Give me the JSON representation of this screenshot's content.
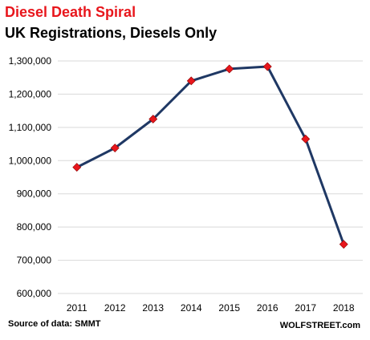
{
  "header": {
    "title": "Diesel Death Spiral",
    "subtitle": "UK Registrations,  Diesels Only"
  },
  "footer": {
    "source": "Source of data: SMMT",
    "credit": "WOLFSTREET.com"
  },
  "colors": {
    "title": "#e8161c",
    "line": "#1f3864",
    "marker": "#e8161c",
    "grid": "#d9d9d9"
  },
  "chart_data": {
    "type": "line",
    "categories": [
      "2011",
      "2012",
      "2013",
      "2014",
      "2015",
      "2016",
      "2017",
      "2018"
    ],
    "series": [
      {
        "values": [
          980000,
          1038000,
          1125000,
          1240000,
          1276000,
          1283000,
          1065000,
          748000
        ]
      }
    ],
    "ylim": [
      600000,
      1300000
    ],
    "yticks": [
      "600,000",
      "700,000",
      "800,000",
      "900,000",
      "1,000,000",
      "1,100,000",
      "1,200,000",
      "1,300,000"
    ],
    "grid": true,
    "legend": "none",
    "marker": "diamond"
  }
}
